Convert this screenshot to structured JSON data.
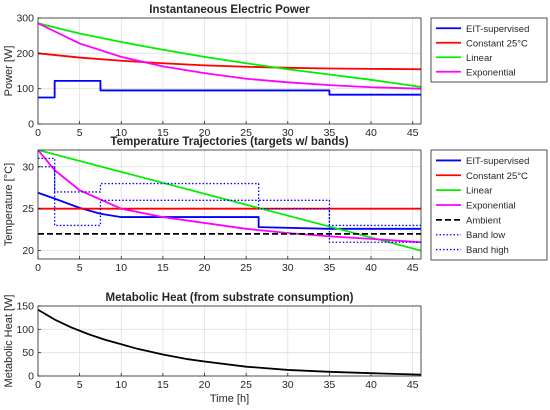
{
  "chart_data": [
    {
      "type": "line",
      "title": "Instantaneous Electric Power",
      "xlabel": "",
      "ylabel": "Power [W]",
      "xlim": [
        0,
        46
      ],
      "ylim": [
        0,
        300
      ],
      "xticks": [
        0,
        5,
        10,
        15,
        20,
        25,
        30,
        35,
        40,
        45
      ],
      "yticks": [
        0,
        100,
        200,
        300
      ],
      "grid": true,
      "legend": "outside-right",
      "series": [
        {
          "name": "EIT-supervised",
          "color": "#0000ff",
          "dash": "solid",
          "x": [
            0,
            2,
            2,
            7.5,
            7.5,
            35,
            35,
            46
          ],
          "y": [
            75,
            75,
            122,
            122,
            95,
            95,
            83,
            83
          ]
        },
        {
          "name": "Constant 25°C",
          "color": "#ff0000",
          "dash": "solid",
          "x": [
            0,
            5,
            10,
            15,
            20,
            25,
            30,
            35,
            40,
            46
          ],
          "y": [
            200,
            188,
            179,
            172,
            166,
            162,
            159,
            157,
            156,
            155
          ]
        },
        {
          "name": "Linear",
          "color": "#00ee00",
          "dash": "solid",
          "x": [
            0,
            5,
            10,
            15,
            20,
            25,
            30,
            35,
            40,
            46
          ],
          "y": [
            285,
            256,
            232,
            210,
            190,
            172,
            155,
            140,
            125,
            105
          ]
        },
        {
          "name": "Exponential",
          "color": "#ff00ff",
          "dash": "solid",
          "x": [
            0,
            5,
            10,
            15,
            20,
            25,
            30,
            35,
            40,
            46
          ],
          "y": [
            285,
            228,
            190,
            163,
            144,
            128,
            118,
            110,
            104,
            100
          ]
        }
      ]
    },
    {
      "type": "line",
      "title": "Temperature Trajectories (targets w/ bands)",
      "xlabel": "",
      "ylabel": "Temperature [°C]",
      "xlim": [
        0,
        46
      ],
      "ylim": [
        19,
        32
      ],
      "xticks": [
        0,
        5,
        10,
        15,
        20,
        25,
        30,
        35,
        40,
        45
      ],
      "yticks": [
        20,
        25,
        30
      ],
      "grid": true,
      "legend": "outside-right",
      "series": [
        {
          "name": "EIT-supervised",
          "color": "#0000ff",
          "dash": "solid",
          "x": [
            0,
            2,
            5,
            7.5,
            10,
            26.5,
            26.5,
            35,
            46
          ],
          "y": [
            26.9,
            26.2,
            25.1,
            24.4,
            24.0,
            24.0,
            22.8,
            22.6,
            22.6
          ]
        },
        {
          "name": "Constant 25°C",
          "color": "#ff0000",
          "dash": "solid",
          "x": [
            0,
            46
          ],
          "y": [
            25,
            25
          ]
        },
        {
          "name": "Linear",
          "color": "#00ee00",
          "dash": "solid",
          "x": [
            0,
            46
          ],
          "y": [
            32,
            20
          ]
        },
        {
          "name": "Exponential",
          "color": "#ff00ff",
          "dash": "solid",
          "x": [
            0,
            2,
            5,
            10,
            15,
            20,
            25,
            30,
            35,
            40,
            46
          ],
          "y": [
            32,
            29.6,
            27.2,
            25.0,
            24.0,
            23.3,
            22.6,
            22.1,
            21.7,
            21.4,
            21.0
          ]
        },
        {
          "name": "Ambient",
          "color": "#000000",
          "dash": "dashed",
          "x": [
            0,
            46
          ],
          "y": [
            22,
            22
          ]
        },
        {
          "name": "Band low",
          "color": "#0000ff",
          "dash": "dotted",
          "x": [
            0,
            2,
            2,
            7.5,
            7.5,
            26.5,
            26.5,
            35,
            35,
            46
          ],
          "y": [
            30,
            30,
            23,
            23,
            26,
            26,
            25,
            25,
            21,
            21
          ]
        },
        {
          "name": "Band high",
          "color": "#0000ff",
          "dash": "dotted",
          "x": [
            0,
            2,
            2,
            7.5,
            7.5,
            26.5,
            26.5,
            35,
            35,
            46
          ],
          "y": [
            31,
            31,
            27,
            27,
            28,
            28,
            26,
            26,
            23,
            23
          ]
        }
      ]
    },
    {
      "type": "line",
      "title": "Metabolic Heat (from substrate consumption)",
      "xlabel": "Time [h]",
      "ylabel": "Metabolic Heat [W]",
      "xlim": [
        0,
        46
      ],
      "ylim": [
        0,
        150
      ],
      "xticks": [
        0,
        5,
        10,
        15,
        20,
        25,
        30,
        35,
        40,
        45
      ],
      "yticks": [
        0,
        50,
        100,
        150
      ],
      "grid": true,
      "legend": "none",
      "series": [
        {
          "name": "",
          "color": "#000000",
          "dash": "solid",
          "x": [
            0,
            2,
            4,
            6,
            8,
            10,
            12,
            15,
            18,
            20,
            25,
            30,
            35,
            40,
            46
          ],
          "y": [
            142,
            121,
            104,
            90,
            78,
            68,
            58,
            46,
            36,
            31,
            20,
            13,
            9,
            6,
            3
          ]
        }
      ]
    }
  ]
}
